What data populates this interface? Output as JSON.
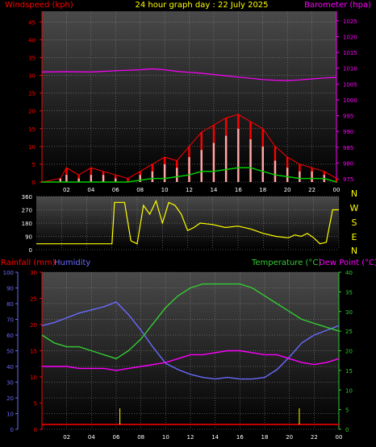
{
  "title": "24 hour graph day : 22 July 2025",
  "colors": {
    "windspeed": "#ff0000",
    "gust": "#ff0000",
    "barometer": "#ff00ff",
    "winddir": "#ffff00",
    "rainfall": "#ff0000",
    "humidity": "#6a6aff",
    "temperature": "#33cc33",
    "dewpoint": "#ff00ff",
    "avg_wind": "#00cc00"
  },
  "chart_data": [
    {
      "type": "line",
      "panel": "wind-barometer",
      "title": "24 hour graph day : 22 July 2025",
      "left_axis_label": "Windspeed (kph)",
      "right_axis_label": "Barometer (hpa)",
      "x_ticks": [
        "02",
        "04",
        "06",
        "08",
        "10",
        "12",
        "14",
        "16",
        "18",
        "20",
        "22",
        "00"
      ],
      "left_ticks": [
        "0",
        "5",
        "10",
        "15",
        "20",
        "25",
        "30",
        "35",
        "40",
        "45"
      ],
      "left_range": [
        0,
        48
      ],
      "right_ticks": [
        "975",
        "980",
        "985",
        "990",
        "995",
        "1000",
        "1005",
        "1010",
        "1015",
        "1020",
        "1025"
      ],
      "right_range": [
        974,
        1028
      ],
      "x_range": [
        0,
        24
      ],
      "barometer": {
        "x": [
          0,
          2,
          4,
          6,
          8,
          9,
          10,
          11,
          12,
          13,
          14,
          15,
          16,
          17,
          18,
          19,
          20,
          21,
          22,
          23,
          24
        ],
        "y": [
          1008.8,
          1008.9,
          1008.8,
          1009.2,
          1009.5,
          1009.8,
          1009.5,
          1009.0,
          1008.7,
          1008.4,
          1008.0,
          1007.6,
          1007.2,
          1006.8,
          1006.4,
          1006.2,
          1006.1,
          1006.3,
          1006.6,
          1006.9,
          1007.1
        ]
      },
      "windspeed": {
        "x": [
          0,
          1,
          1.5,
          2,
          3,
          4,
          5,
          6,
          7,
          8,
          9,
          10,
          11,
          12,
          13,
          14,
          15,
          16,
          17,
          18,
          19,
          20,
          21,
          22,
          23,
          24
        ],
        "y": [
          0,
          0,
          1,
          2,
          1,
          2,
          2,
          1,
          0,
          2,
          3,
          5,
          4,
          7,
          9,
          11,
          13,
          15,
          12,
          10,
          6,
          4,
          3,
          3,
          2,
          0
        ]
      },
      "gust": {
        "x": [
          0,
          1.5,
          2,
          3,
          4,
          5,
          6,
          7,
          8,
          9,
          10,
          11,
          12,
          13,
          14,
          15,
          16,
          17,
          18,
          19,
          20,
          21,
          22,
          23,
          24
        ],
        "y": [
          0,
          1,
          4,
          2,
          4,
          3,
          2,
          1,
          3,
          5,
          7,
          6,
          10,
          14,
          16,
          18,
          19,
          17,
          15,
          10,
          7,
          5,
          4,
          3,
          1
        ]
      },
      "avg_wind": {
        "x": [
          0,
          7,
          8,
          9,
          10,
          11,
          12,
          13,
          14,
          15,
          16,
          17,
          18,
          19,
          20,
          21,
          22,
          23,
          24
        ],
        "y": [
          0,
          0,
          0.5,
          1,
          1,
          1.5,
          2,
          3,
          3,
          3.5,
          4,
          4,
          3,
          2,
          1.5,
          1,
          1,
          1,
          0
        ]
      }
    },
    {
      "type": "line",
      "panel": "wind-direction",
      "left_ticks": [
        "0",
        "90",
        "180",
        "270",
        "360"
      ],
      "left_range": [
        0,
        360
      ],
      "right_labels": [
        "N",
        "W",
        "S",
        "E",
        "N"
      ],
      "winddir": {
        "x": [
          0,
          3,
          6,
          6.2,
          7,
          7.5,
          8,
          8.5,
          9,
          9.5,
          10,
          10.5,
          11,
          11.5,
          12,
          12.5,
          13,
          14,
          15,
          16,
          17,
          18,
          19,
          20,
          20.5,
          21,
          21.5,
          22,
          22.5,
          23,
          23.5,
          24
        ],
        "y": [
          40,
          40,
          40,
          320,
          320,
          60,
          40,
          300,
          240,
          330,
          180,
          320,
          300,
          240,
          130,
          150,
          180,
          170,
          150,
          160,
          140,
          110,
          90,
          80,
          100,
          90,
          110,
          80,
          40,
          50,
          270,
          270
        ]
      }
    },
    {
      "type": "line",
      "panel": "rain-humidity-temperature",
      "left_labels": [
        "Rainfall (mm)",
        "Humidity"
      ],
      "right_labels": [
        "Temperature (°C)",
        "Dew Point (°C)"
      ],
      "humidity_ticks": [
        "0",
        "10",
        "20",
        "30",
        "40",
        "50",
        "60",
        "70",
        "80",
        "90",
        "100"
      ],
      "humidity_range": [
        0,
        100
      ],
      "rain_ticks": [
        "0",
        "5",
        "10",
        "15",
        "20",
        "25",
        "30"
      ],
      "rain_range": [
        0,
        30
      ],
      "temp_ticks": [
        "0",
        "5",
        "10",
        "15",
        "20",
        "25",
        "30",
        "35",
        "40"
      ],
      "temp_range": [
        0,
        40
      ],
      "rainfall": {
        "x": [
          6.3,
          20.8
        ],
        "y": [
          0.2,
          0.2
        ]
      },
      "humidity": {
        "x": [
          0,
          1,
          2,
          3,
          4,
          5,
          6,
          7,
          8,
          9,
          10,
          11,
          12,
          13,
          14,
          15,
          16,
          17,
          18,
          19,
          20,
          21,
          22,
          23,
          24
        ],
        "y": [
          66,
          68,
          71,
          74,
          76,
          78,
          81,
          73,
          63,
          52,
          42,
          38,
          35,
          33,
          32,
          33,
          32,
          32,
          33,
          38,
          46,
          55,
          60,
          63,
          66
        ]
      },
      "temperature": {
        "x": [
          0,
          1,
          2,
          3,
          4,
          5,
          6,
          7,
          8,
          9,
          10,
          11,
          12,
          13,
          14,
          15,
          16,
          17,
          18,
          19,
          20,
          21,
          22,
          23,
          24
        ],
        "y": [
          24,
          22,
          21,
          21,
          20,
          19,
          18,
          20,
          23,
          27,
          31,
          34,
          36,
          37,
          37,
          37,
          37,
          36,
          34,
          32,
          30,
          28,
          27,
          26,
          25
        ]
      },
      "dewpoint": {
        "x": [
          0,
          1,
          2,
          3,
          4,
          5,
          6,
          7,
          8,
          9,
          10,
          11,
          12,
          13,
          14,
          15,
          16,
          17,
          18,
          19,
          20,
          21,
          22,
          23,
          24
        ],
        "y": [
          16,
          16,
          16,
          15.5,
          15.5,
          15.5,
          15,
          15.5,
          16,
          16.5,
          17,
          18,
          19,
          19,
          19.5,
          20,
          20,
          19.5,
          19,
          19,
          18,
          17,
          16.5,
          17,
          18
        ]
      }
    }
  ]
}
